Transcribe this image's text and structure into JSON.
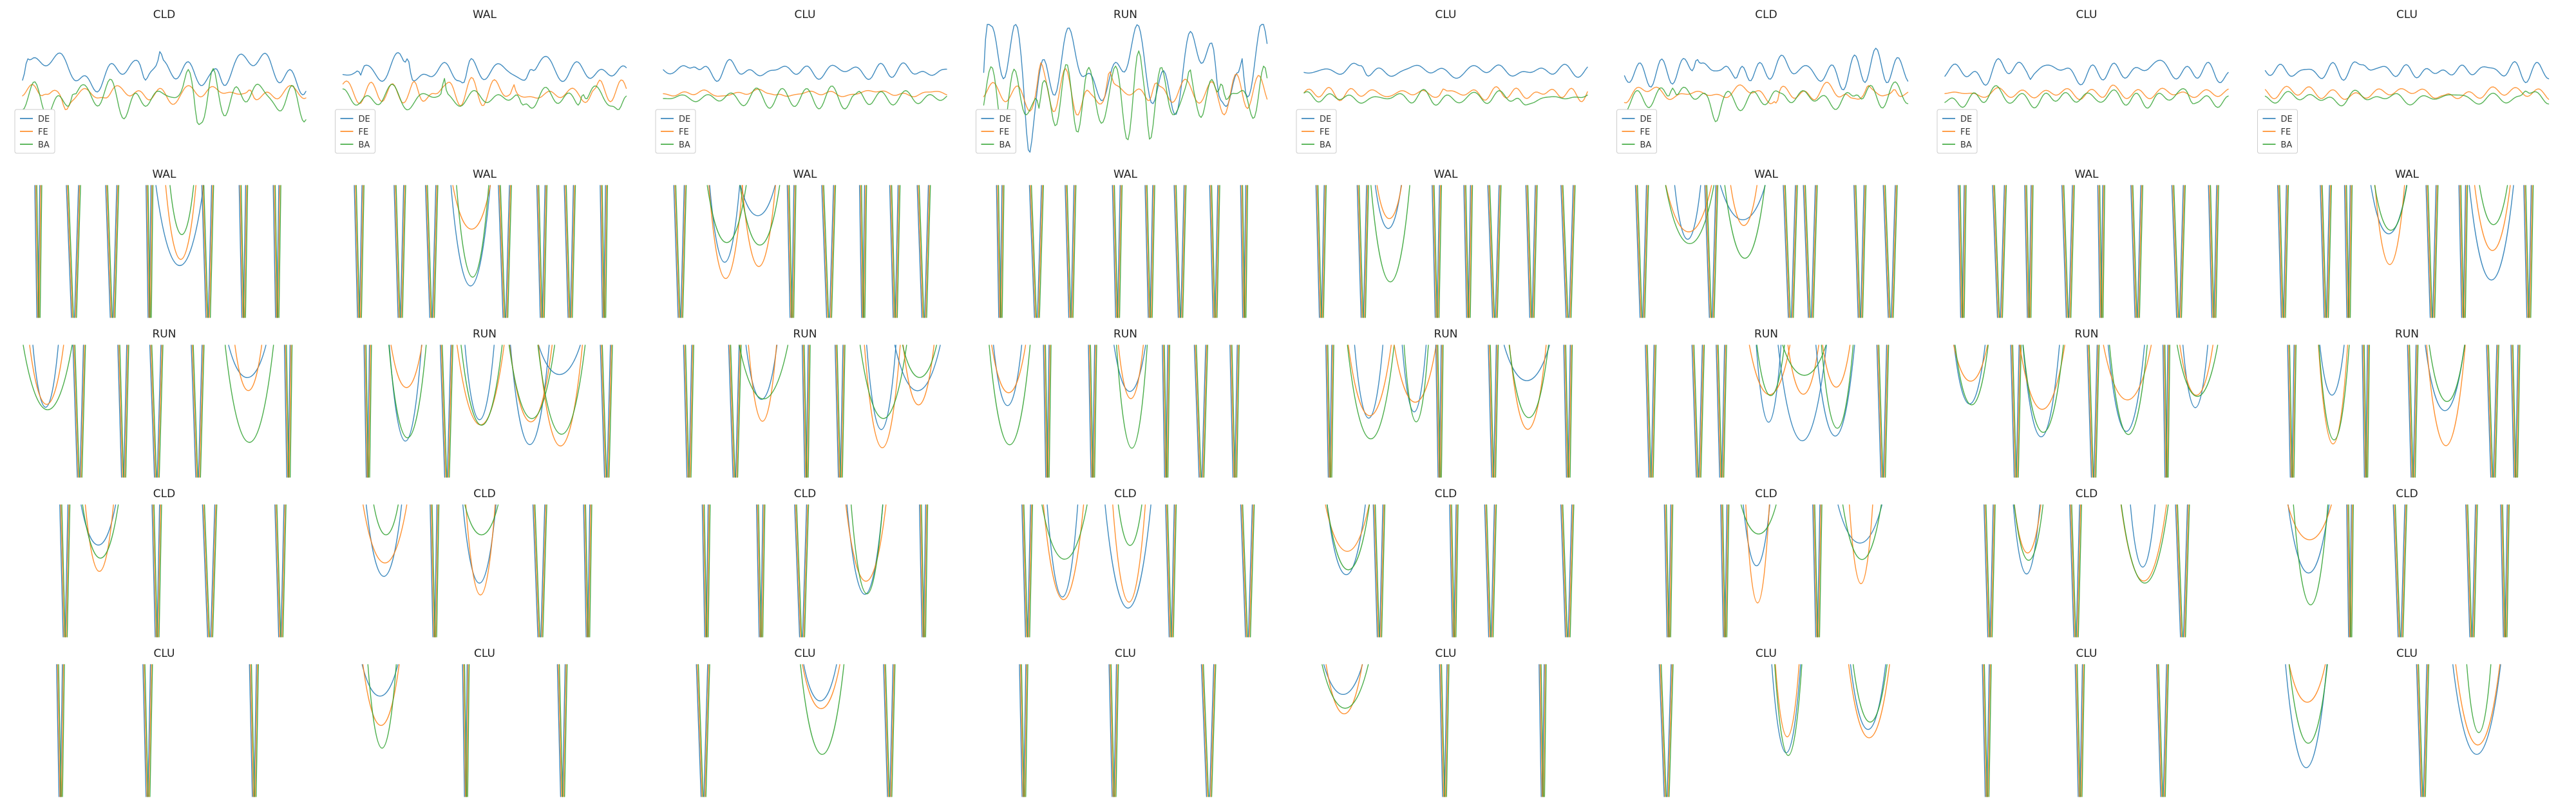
{
  "colors": {
    "DE": "#1f77b4",
    "FE": "#ff7f0e",
    "BA": "#2ca02c"
  },
  "series_names": [
    "DE",
    "FE",
    "BA"
  ],
  "chart_data": {
    "type": "line",
    "grid": false,
    "axes_visible": false,
    "layout": "5 rows x 8 columns of panels",
    "legend": {
      "placement": "bottom-left",
      "shown_in_row": 1,
      "entries": [
        "DE",
        "FE",
        "BA"
      ]
    },
    "rows": [
      {
        "titles": [
          "CLD",
          "WAL",
          "CLU",
          "RUN",
          "CLU",
          "CLD",
          "CLU",
          "CLU"
        ],
        "style": "signal"
      },
      {
        "titles": [
          "WAL",
          "WAL",
          "WAL",
          "WAL",
          "WAL",
          "WAL",
          "WAL",
          "WAL"
        ],
        "style": "cutoff"
      },
      {
        "titles": [
          "RUN",
          "RUN",
          "RUN",
          "RUN",
          "RUN",
          "RUN",
          "RUN",
          "RUN"
        ],
        "style": "cutoff"
      },
      {
        "titles": [
          "CLD",
          "CLD",
          "CLD",
          "CLD",
          "CLD",
          "CLD",
          "CLD",
          "CLD"
        ],
        "style": "cutoff"
      },
      {
        "titles": [
          "CLU",
          "CLU",
          "CLU",
          "CLU",
          "CLU",
          "CLU",
          "CLU",
          "CLU"
        ],
        "style": "cutoff"
      }
    ]
  }
}
